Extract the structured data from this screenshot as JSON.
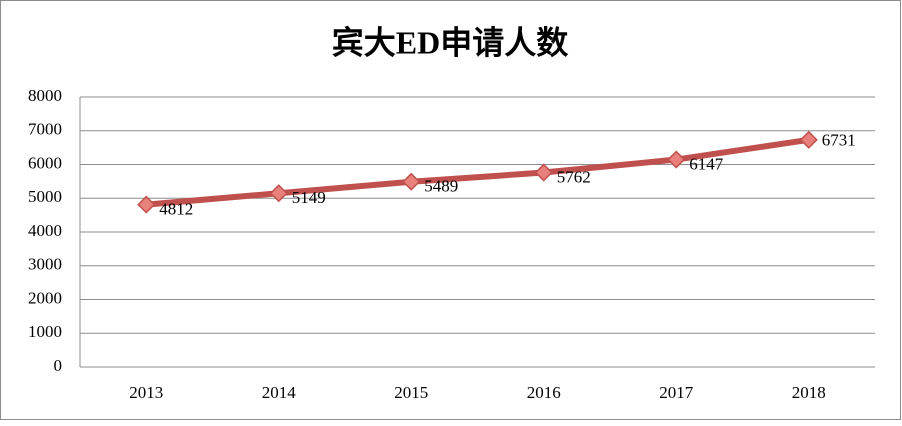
{
  "chart_data": {
    "type": "line",
    "title": "宾大ED申请人数",
    "categories": [
      "2013",
      "2014",
      "2015",
      "2016",
      "2017",
      "2018"
    ],
    "values": [
      4812,
      5149,
      5489,
      5762,
      6147,
      6731
    ],
    "color": "#c0504d",
    "marker_color": "#e8807c",
    "ylim": [
      0,
      8000
    ],
    "yticks": [
      0,
      1000,
      2000,
      3000,
      4000,
      5000,
      6000,
      7000,
      8000
    ],
    "grid": true
  }
}
